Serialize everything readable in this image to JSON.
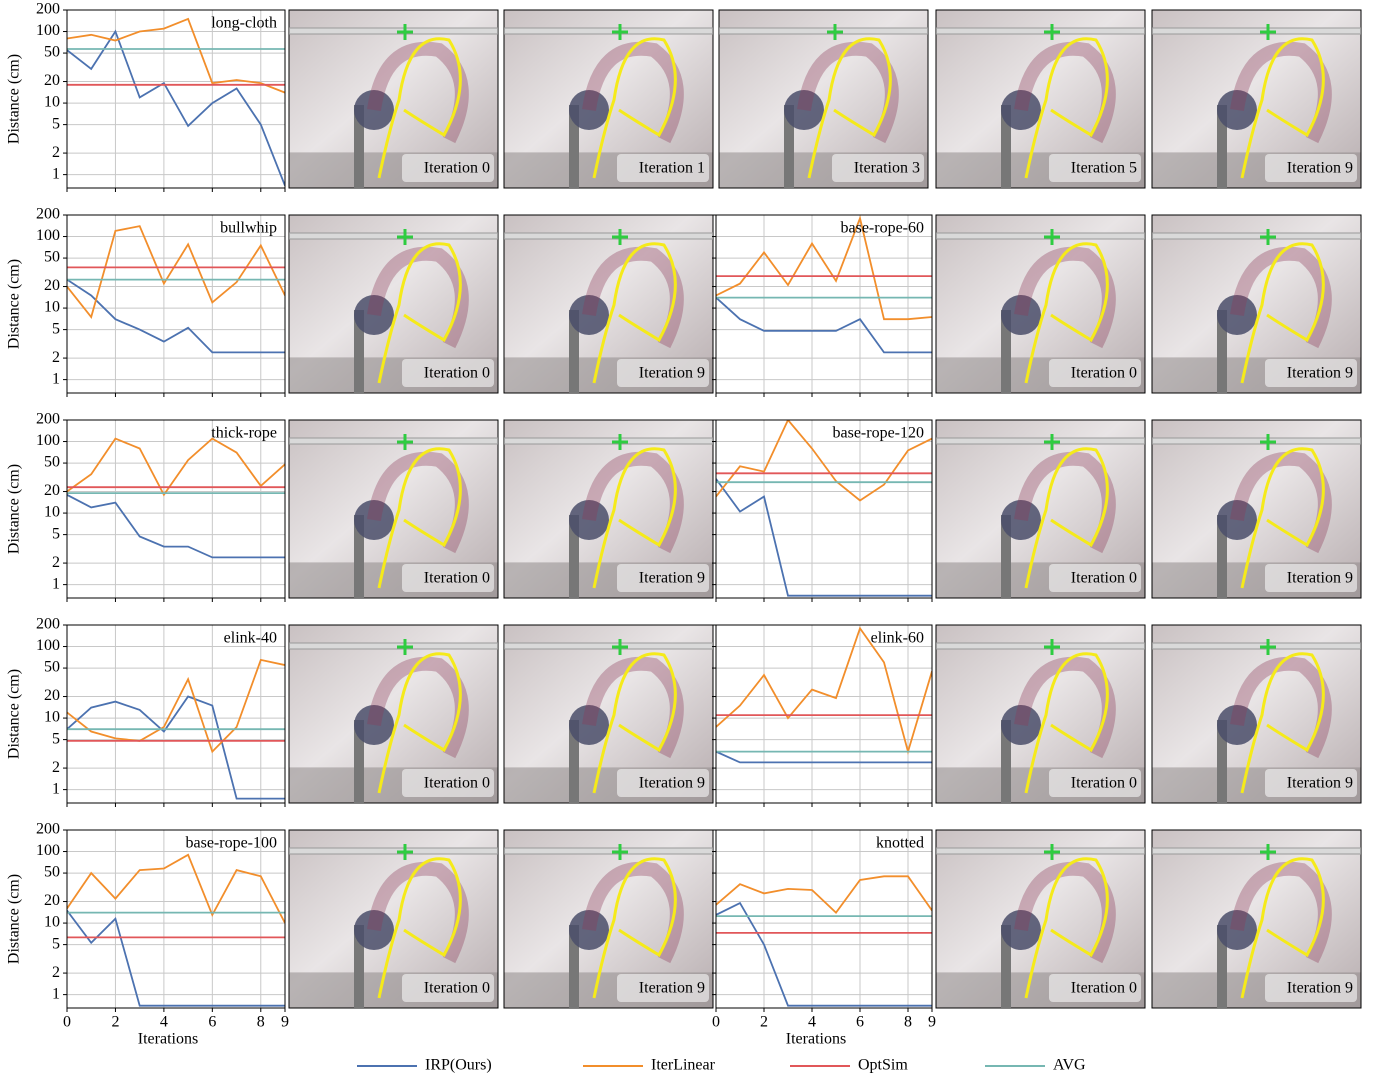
{
  "legend": [
    {
      "name": "IRP(Ours)",
      "color": "#4c72b0"
    },
    {
      "name": "IterLinear",
      "color": "#f28e2b"
    },
    {
      "name": "OptSim",
      "color": "#e15759"
    },
    {
      "name": "AVG",
      "color": "#76b7b2"
    }
  ],
  "chart_data": [
    {
      "type": "line",
      "title": "long-cloth",
      "ylabel": "Distance (cm)",
      "ytick_labels": true,
      "xtick_labels": false,
      "log_y": true,
      "grid": true,
      "x": [
        0,
        1,
        2,
        3,
        4,
        5,
        6,
        7,
        8,
        9
      ],
      "xlim": [
        0,
        9
      ],
      "xticks": [
        0,
        2,
        4,
        6,
        8,
        9
      ],
      "ylim": [
        0.65,
        200
      ],
      "yticks": [
        1,
        2,
        5,
        10,
        20,
        50,
        100,
        200
      ],
      "series": [
        {
          "values": [
            55,
            30,
            100,
            12,
            19,
            4.8,
            10,
            16,
            5,
            0.7
          ]
        },
        {
          "values": [
            80,
            90,
            75,
            100,
            110,
            150,
            19,
            21,
            19,
            14
          ]
        },
        {
          "values": [
            18,
            18,
            18,
            18,
            18,
            18,
            18,
            18,
            18,
            18
          ]
        },
        {
          "values": [
            57,
            57,
            57,
            57,
            57,
            57,
            57,
            57,
            57,
            57
          ]
        }
      ]
    },
    {
      "type": "line",
      "title": "bullwhip",
      "ylabel": "Distance (cm)",
      "ytick_labels": true,
      "xtick_labels": false,
      "log_y": true,
      "grid": true,
      "x": [
        0,
        1,
        2,
        3,
        4,
        5,
        6,
        7,
        8,
        9
      ],
      "xlim": [
        0,
        9
      ],
      "xticks": [
        0,
        2,
        4,
        6,
        8,
        9
      ],
      "ylim": [
        0.65,
        200
      ],
      "yticks": [
        1,
        2,
        5,
        10,
        20,
        50,
        100,
        200
      ],
      "series": [
        {
          "values": [
            25,
            15,
            7,
            5,
            3.4,
            5.3,
            2.4,
            2.4,
            2.4,
            2.4
          ]
        },
        {
          "values": [
            20,
            7.5,
            120,
            140,
            22,
            78,
            12,
            23,
            75,
            15
          ]
        },
        {
          "values": [
            37,
            37,
            37,
            37,
            37,
            37,
            37,
            37,
            37,
            37
          ]
        },
        {
          "values": [
            25,
            25,
            25,
            25,
            25,
            25,
            25,
            25,
            25,
            25
          ]
        }
      ]
    },
    {
      "type": "line",
      "title": "base-rope-60",
      "ytick_labels": false,
      "xtick_labels": false,
      "log_y": true,
      "grid": true,
      "x": [
        0,
        1,
        2,
        3,
        4,
        5,
        6,
        7,
        8,
        9
      ],
      "xlim": [
        0,
        9
      ],
      "xticks": [
        0,
        2,
        4,
        6,
        8,
        9
      ],
      "ylim": [
        0.65,
        200
      ],
      "yticks": [
        1,
        2,
        5,
        10,
        20,
        50,
        100,
        200
      ],
      "series": [
        {
          "values": [
            14,
            7,
            4.8,
            4.8,
            4.8,
            4.8,
            7,
            2.4,
            2.4,
            2.4
          ]
        },
        {
          "values": [
            15,
            22,
            60,
            21,
            80,
            24,
            180,
            7,
            7,
            7.5
          ]
        },
        {
          "values": [
            28,
            28,
            28,
            28,
            28,
            28,
            28,
            28,
            28,
            28
          ]
        },
        {
          "values": [
            14,
            14,
            14,
            14,
            14,
            14,
            14,
            14,
            14,
            14
          ]
        }
      ]
    },
    {
      "type": "line",
      "title": "thick-rope",
      "ylabel": "Distance (cm)",
      "ytick_labels": true,
      "xtick_labels": false,
      "log_y": true,
      "grid": true,
      "x": [
        0,
        1,
        2,
        3,
        4,
        5,
        6,
        7,
        8,
        9
      ],
      "xlim": [
        0,
        9
      ],
      "xticks": [
        0,
        2,
        4,
        6,
        8,
        9
      ],
      "ylim": [
        0.65,
        200
      ],
      "yticks": [
        1,
        2,
        5,
        10,
        20,
        50,
        100,
        200
      ],
      "series": [
        {
          "values": [
            18,
            12,
            14,
            4.7,
            3.4,
            3.4,
            2.4,
            2.4,
            2.4,
            2.4
          ]
        },
        {
          "values": [
            20,
            35,
            110,
            80,
            18,
            55,
            110,
            70,
            24,
            48
          ]
        },
        {
          "values": [
            23,
            23,
            23,
            23,
            23,
            23,
            23,
            23,
            23,
            23
          ]
        },
        {
          "values": [
            19,
            19,
            19,
            19,
            19,
            19,
            19,
            19,
            19,
            19
          ]
        }
      ]
    },
    {
      "type": "line",
      "title": "base-rope-120",
      "ytick_labels": false,
      "xtick_labels": false,
      "log_y": true,
      "grid": true,
      "x": [
        0,
        1,
        2,
        3,
        4,
        5,
        6,
        7,
        8,
        9
      ],
      "xlim": [
        0,
        9
      ],
      "xticks": [
        0,
        2,
        4,
        6,
        8,
        9
      ],
      "ylim": [
        0.65,
        200
      ],
      "yticks": [
        1,
        2,
        5,
        10,
        20,
        50,
        100,
        200
      ],
      "series": [
        {
          "values": [
            30,
            10.5,
            17,
            0.7,
            0.7,
            0.7,
            0.7,
            0.7,
            0.7,
            0.7
          ]
        },
        {
          "values": [
            17,
            45,
            38,
            200,
            80,
            28,
            15,
            25,
            75,
            110
          ]
        },
        {
          "values": [
            36,
            36,
            36,
            36,
            36,
            36,
            36,
            36,
            36,
            36
          ]
        },
        {
          "values": [
            27,
            27,
            27,
            27,
            27,
            27,
            27,
            27,
            27,
            27
          ]
        }
      ]
    },
    {
      "type": "line",
      "title": "elink-40",
      "ylabel": "Distance (cm)",
      "ytick_labels": true,
      "xtick_labels": false,
      "log_y": true,
      "grid": true,
      "x": [
        0,
        1,
        2,
        3,
        4,
        5,
        6,
        7,
        8,
        9
      ],
      "xlim": [
        0,
        9
      ],
      "xticks": [
        0,
        2,
        4,
        6,
        8,
        9
      ],
      "ylim": [
        0.65,
        200
      ],
      "yticks": [
        1,
        2,
        5,
        10,
        20,
        50,
        100,
        200
      ],
      "series": [
        {
          "values": [
            7,
            14,
            17,
            13,
            6.5,
            20,
            15,
            0.75,
            0.75,
            0.75
          ]
        },
        {
          "values": [
            12,
            6.5,
            5.2,
            4.8,
            7.5,
            35,
            3.4,
            7.5,
            65,
            55
          ]
        },
        {
          "values": [
            4.8,
            4.8,
            4.8,
            4.8,
            4.8,
            4.8,
            4.8,
            4.8,
            4.8,
            4.8
          ]
        },
        {
          "values": [
            7,
            7,
            7,
            7,
            7,
            7,
            7,
            7,
            7,
            7
          ]
        }
      ]
    },
    {
      "type": "line",
      "title": "elink-60",
      "ytick_labels": false,
      "xtick_labels": false,
      "log_y": true,
      "grid": true,
      "x": [
        0,
        1,
        2,
        3,
        4,
        5,
        6,
        7,
        8,
        9
      ],
      "xlim": [
        0,
        9
      ],
      "xticks": [
        0,
        2,
        4,
        6,
        8,
        9
      ],
      "ylim": [
        0.65,
        200
      ],
      "yticks": [
        1,
        2,
        5,
        10,
        20,
        50,
        100,
        200
      ],
      "series": [
        {
          "values": [
            3.4,
            2.4,
            2.4,
            2.4,
            2.4,
            2.4,
            2.4,
            2.4,
            2.4,
            2.4
          ]
        },
        {
          "values": [
            7.5,
            15,
            40,
            10,
            25,
            19,
            180,
            60,
            3.4,
            45
          ]
        },
        {
          "values": [
            11,
            11,
            11,
            11,
            11,
            11,
            11,
            11,
            11,
            11
          ]
        },
        {
          "values": [
            3.4,
            3.4,
            3.4,
            3.4,
            3.4,
            3.4,
            3.4,
            3.4,
            3.4,
            3.4
          ]
        }
      ]
    },
    {
      "type": "line",
      "title": "base-rope-100",
      "ylabel": "Distance (cm)",
      "xlabel": "Iterations",
      "ytick_labels": true,
      "xtick_labels": true,
      "log_y": true,
      "grid": true,
      "x": [
        0,
        1,
        2,
        3,
        4,
        5,
        6,
        7,
        8,
        9
      ],
      "xlim": [
        0,
        9
      ],
      "xticks": [
        0,
        2,
        4,
        6,
        8,
        9
      ],
      "ylim": [
        0.65,
        200
      ],
      "yticks": [
        1,
        2,
        5,
        10,
        20,
        50,
        100,
        200
      ],
      "series": [
        {
          "values": [
            15,
            5.3,
            11.5,
            0.7,
            0.7,
            0.7,
            0.7,
            0.7,
            0.7,
            0.7
          ]
        },
        {
          "values": [
            16,
            50,
            22,
            55,
            58,
            90,
            13,
            55,
            45,
            10
          ]
        },
        {
          "values": [
            6.3,
            6.3,
            6.3,
            6.3,
            6.3,
            6.3,
            6.3,
            6.3,
            6.3,
            6.3
          ]
        },
        {
          "values": [
            14,
            14,
            14,
            14,
            14,
            14,
            14,
            14,
            14,
            14
          ]
        }
      ]
    },
    {
      "type": "line",
      "title": "knotted",
      "xlabel": "Iterations",
      "ytick_labels": false,
      "xtick_labels": true,
      "log_y": true,
      "grid": true,
      "x": [
        0,
        1,
        2,
        3,
        4,
        5,
        6,
        7,
        8,
        9
      ],
      "xlim": [
        0,
        9
      ],
      "xticks": [
        0,
        2,
        4,
        6,
        8,
        9
      ],
      "ylim": [
        0.65,
        200
      ],
      "yticks": [
        1,
        2,
        5,
        10,
        20,
        50,
        100,
        200
      ],
      "series": [
        {
          "values": [
            13,
            19,
            5,
            0.7,
            0.7,
            0.7,
            0.7,
            0.7,
            0.7,
            0.7
          ]
        },
        {
          "values": [
            18,
            35,
            26,
            30,
            29,
            14,
            40,
            45,
            45,
            15
          ]
        },
        {
          "values": [
            7.3,
            7.3,
            7.3,
            7.3,
            7.3,
            7.3,
            7.3,
            7.3,
            7.3,
            7.3
          ]
        },
        {
          "values": [
            12.5,
            12.5,
            12.5,
            12.5,
            12.5,
            12.5,
            12.5,
            12.5,
            12.5,
            12.5
          ]
        }
      ]
    }
  ],
  "panels": [
    {
      "label": "Iteration 0"
    },
    {
      "label": "Iteration 1"
    },
    {
      "label": "Iteration 3"
    },
    {
      "label": "Iteration 5"
    },
    {
      "label": "Iteration 9"
    },
    {
      "label": "Iteration 0"
    },
    {
      "label": "Iteration 9"
    },
    {
      "label": "Iteration 0"
    },
    {
      "label": "Iteration 9"
    },
    {
      "label": "Iteration 0"
    },
    {
      "label": "Iteration 9"
    },
    {
      "label": "Iteration 0"
    },
    {
      "label": "Iteration 9"
    },
    {
      "label": "Iteration 0"
    },
    {
      "label": "Iteration 9"
    },
    {
      "label": "Iteration 0"
    },
    {
      "label": "Iteration 9"
    },
    {
      "label": "Iteration 0"
    },
    {
      "label": "Iteration 9"
    },
    {
      "label": "Iteration 0"
    },
    {
      "label": "Iteration 9"
    }
  ]
}
